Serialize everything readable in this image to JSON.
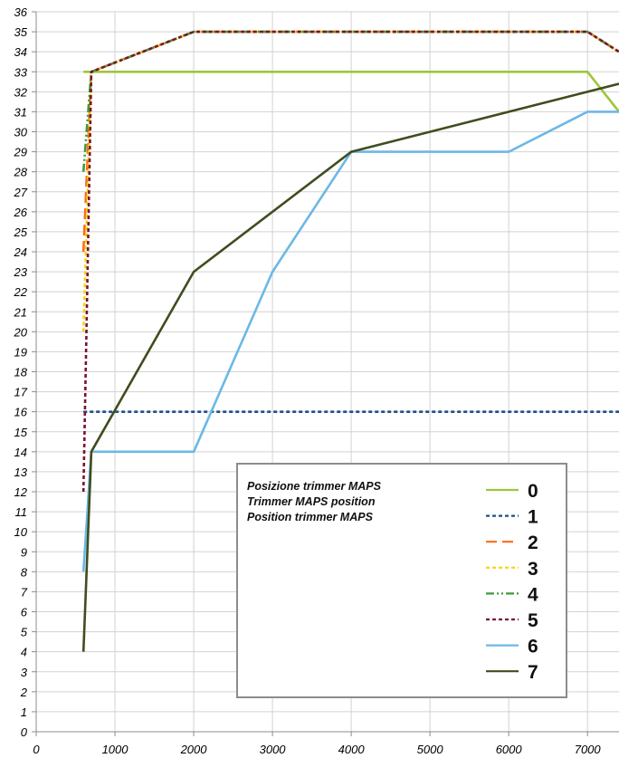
{
  "chart_data": {
    "type": "line",
    "x_ticks": [
      0,
      1000,
      2000,
      3000,
      4000,
      5000,
      6000,
      7000
    ],
    "x_range": [
      0,
      7400
    ],
    "y_ticks": [
      0,
      1,
      2,
      3,
      4,
      5,
      6,
      7,
      8,
      9,
      10,
      11,
      12,
      13,
      14,
      15,
      16,
      17,
      18,
      19,
      20,
      21,
      22,
      23,
      24,
      25,
      26,
      27,
      28,
      29,
      30,
      31,
      32,
      33,
      34,
      35,
      36
    ],
    "y_range": [
      0,
      36
    ],
    "grid": true,
    "legend": {
      "position": "bottom-right",
      "title_lines": [
        "Posizione trimmer MAPS",
        "Trimmer MAPS position",
        "Position trimmer MAPS"
      ]
    },
    "series": [
      {
        "name": "0",
        "color": "#9dc73c",
        "dash": "solid",
        "x": [
          600,
          7000,
          7400
        ],
        "y": [
          33,
          33,
          31
        ]
      },
      {
        "name": "1",
        "color": "#1f4e8c",
        "dash": "short-dash",
        "x": [
          600,
          7400
        ],
        "y": [
          16,
          16
        ]
      },
      {
        "name": "2",
        "color": "#ff6a1a",
        "dash": "long-dash",
        "x": [
          600,
          700,
          2000,
          7000,
          7400
        ],
        "y": [
          24,
          33,
          35,
          35,
          34
        ]
      },
      {
        "name": "3",
        "color": "#f5d40a",
        "dash": "short-dash",
        "x": [
          600,
          700,
          2000,
          7000,
          7400
        ],
        "y": [
          20,
          33,
          35,
          35,
          34
        ]
      },
      {
        "name": "4",
        "color": "#3c9a3c",
        "dash": "dash-dot-dot",
        "x": [
          600,
          700,
          2000,
          7000,
          7400
        ],
        "y": [
          28,
          33,
          35,
          35,
          34
        ]
      },
      {
        "name": "5",
        "color": "#7a1230",
        "dash": "short-dash",
        "x": [
          600,
          700,
          2000,
          7000,
          7400
        ],
        "y": [
          12,
          33,
          35,
          35,
          34
        ]
      },
      {
        "name": "6",
        "color": "#6cb8e6",
        "dash": "solid",
        "x": [
          600,
          700,
          2000,
          3000,
          4000,
          6000,
          7000,
          7400
        ],
        "y": [
          8,
          14,
          14,
          23,
          29,
          29,
          31,
          31
        ]
      },
      {
        "name": "7",
        "color": "#3f4d1e",
        "dash": "solid",
        "x": [
          600,
          700,
          2000,
          4000,
          7400
        ],
        "y": [
          4,
          14,
          23,
          29,
          32.4
        ]
      }
    ]
  }
}
